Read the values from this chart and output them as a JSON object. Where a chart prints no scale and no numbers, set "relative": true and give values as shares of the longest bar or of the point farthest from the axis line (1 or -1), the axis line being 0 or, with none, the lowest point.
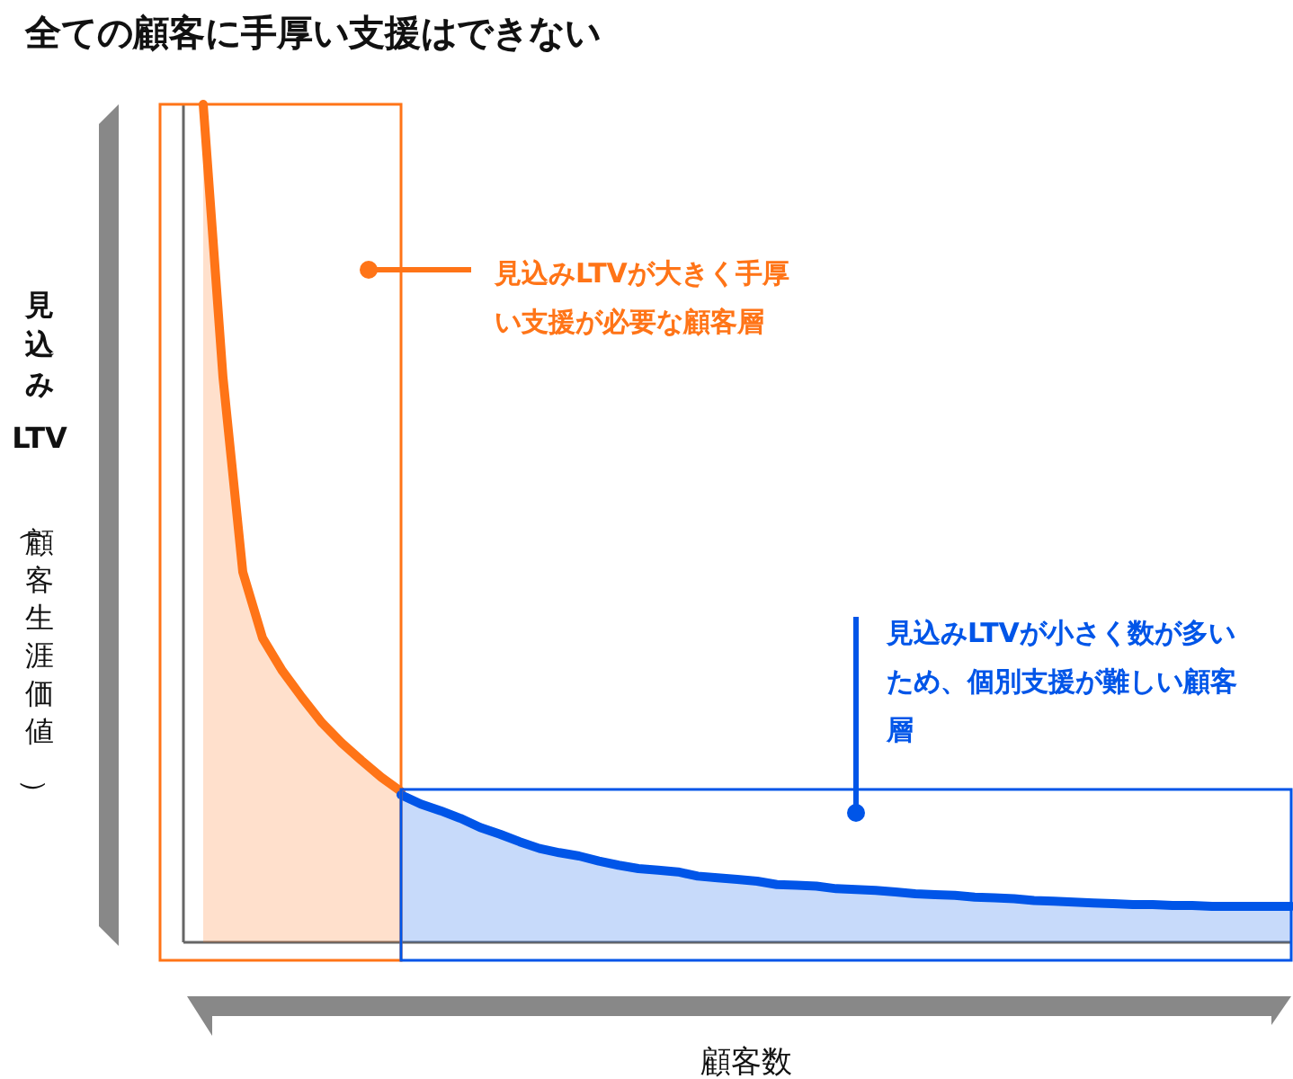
{
  "chart_data": {
    "type": "area",
    "relative": true,
    "title": "全ての顧客に手厚い支援はできない",
    "xlabel": "顧客数",
    "ylabel": "見込みLTV（顧客生涯価値）",
    "categories": [
      null,
      null,
      null,
      null,
      null,
      null,
      null,
      null,
      null,
      null,
      null,
      null,
      null,
      null,
      null,
      null,
      null,
      null,
      null,
      null,
      null,
      null,
      null,
      null,
      null,
      null,
      null,
      null,
      null,
      null,
      null,
      null,
      null,
      null,
      null,
      null,
      null,
      null,
      null,
      null,
      null,
      null,
      null,
      null,
      null,
      null,
      null,
      null,
      null,
      null,
      null,
      null,
      null,
      null,
      null,
      null,
      null
    ],
    "series": [
      {
        "color": "#ff7417",
        "values": [
          null,
          1.0,
          0.674,
          0.442,
          0.363,
          0.324,
          0.292,
          0.262,
          0.238,
          0.217,
          0.197,
          0.18,
          null,
          null,
          null,
          null,
          null,
          null,
          null,
          null,
          null,
          null,
          null,
          null,
          null,
          null,
          null,
          null,
          null,
          null,
          null,
          null,
          null,
          null,
          null,
          null,
          null,
          null,
          null,
          null,
          null,
          null,
          null,
          null,
          null,
          null,
          null,
          null,
          null,
          null,
          null,
          null,
          null,
          null,
          null,
          null,
          null
        ]
      },
      {
        "color": "#0055e8",
        "values": [
          null,
          null,
          null,
          null,
          null,
          null,
          null,
          null,
          null,
          null,
          null,
          0.176,
          0.165,
          0.157,
          0.148,
          0.137,
          0.129,
          0.12,
          0.112,
          0.107,
          0.103,
          0.097,
          0.092,
          0.088,
          0.086,
          0.084,
          0.079,
          0.077,
          0.075,
          0.073,
          0.069,
          0.068,
          0.067,
          0.064,
          0.063,
          0.062,
          0.06,
          0.058,
          0.057,
          0.056,
          0.054,
          0.053,
          0.052,
          0.05,
          0.049,
          0.048,
          0.047,
          0.046,
          0.045,
          0.045,
          0.044,
          0.044,
          0.043,
          0.043,
          0.043,
          0.043,
          0.043
        ]
      }
    ],
    "annotations": [
      "見込みLTVが大きく手厚い支援が必要な顧客層",
      "見込みLTVが小さく数が多いため、個別支援が難しい顧客層"
    ]
  }
}
